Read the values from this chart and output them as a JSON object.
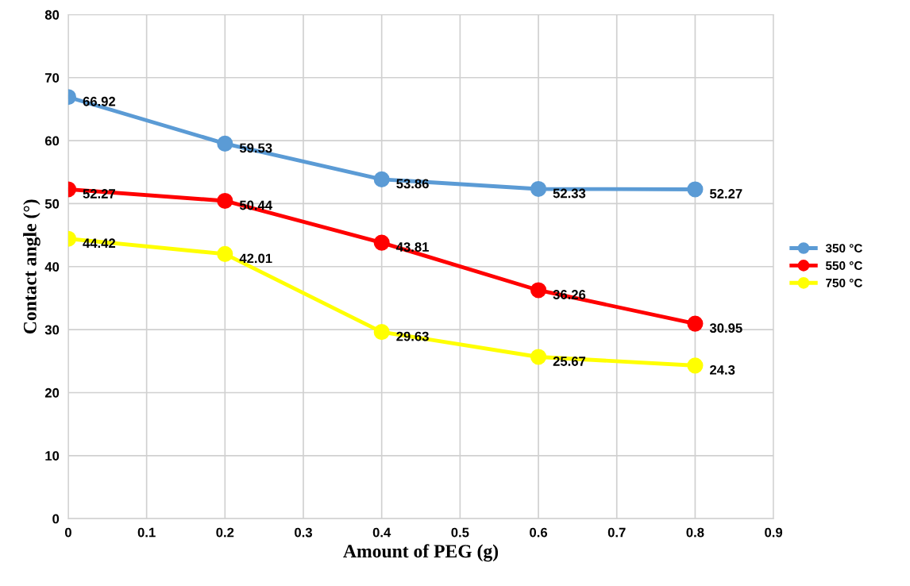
{
  "chart_data": {
    "type": "line",
    "xlabel": "Amount of PEG (g)",
    "ylabel": "Contact angle (°)",
    "x": [
      0,
      0.2,
      0.4,
      0.6,
      0.8
    ],
    "series": [
      {
        "name": "350 °C",
        "color": "#5b9bd5",
        "values": [
          66.92,
          59.53,
          53.86,
          52.33,
          52.27
        ]
      },
      {
        "name": "550 °C",
        "color": "#ff0000",
        "values": [
          52.27,
          50.44,
          43.81,
          36.26,
          30.95
        ]
      },
      {
        "name": "750 °C",
        "color": "#ffff00",
        "values": [
          44.42,
          42.01,
          29.63,
          25.67,
          24.3
        ]
      }
    ],
    "xlim": [
      0,
      0.9
    ],
    "xticks": [
      0,
      0.1,
      0.2,
      0.3,
      0.4,
      0.5,
      0.6,
      0.7,
      0.8,
      0.9
    ],
    "ylim": [
      0,
      80
    ],
    "yticks": [
      0,
      10,
      20,
      30,
      40,
      50,
      60,
      70,
      80
    ],
    "grid": true,
    "legend": "right",
    "marker": "circle",
    "line_style": "solid",
    "data_labels": true
  }
}
